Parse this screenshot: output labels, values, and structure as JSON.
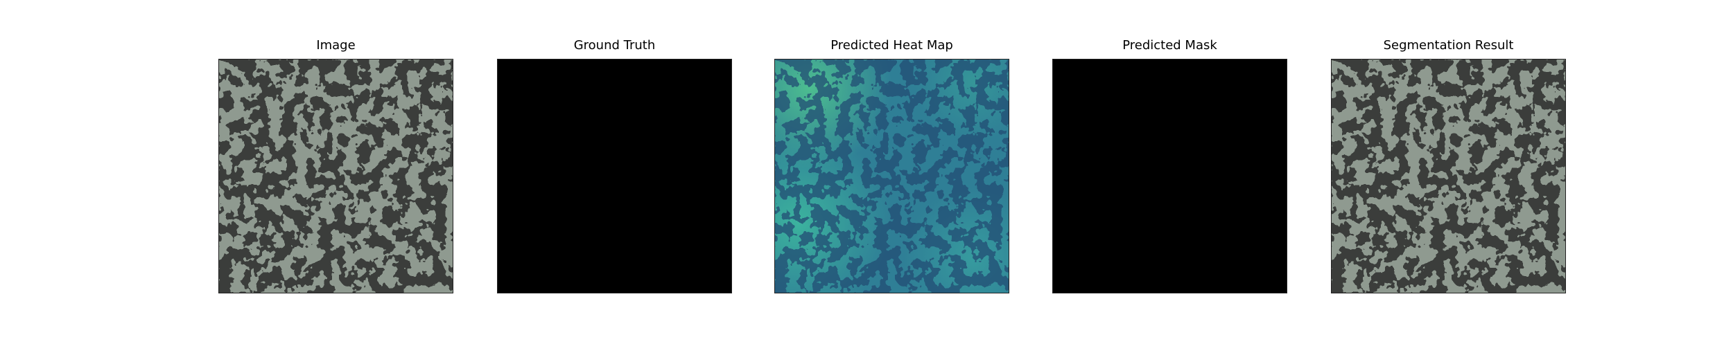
{
  "figure": {
    "panels": [
      {
        "id": "image",
        "title": "Image",
        "content": "texture-photo"
      },
      {
        "id": "ground-truth",
        "title": "Ground Truth",
        "content": "black-mask"
      },
      {
        "id": "heat-map",
        "title": "Predicted Heat Map",
        "content": "heatmap-overlay"
      },
      {
        "id": "pred-mask",
        "title": "Predicted Mask",
        "content": "black-mask"
      },
      {
        "id": "segmentation",
        "title": "Segmentation Result",
        "content": "texture-photo"
      }
    ]
  },
  "colors": {
    "texture_base": "#8f9a90",
    "texture_spot": "#3a3d3b",
    "mask": "#000000",
    "heat_base": "#2f6e8e",
    "heat_warm": "#3fbfa0",
    "heat_spot": "#244d74"
  }
}
